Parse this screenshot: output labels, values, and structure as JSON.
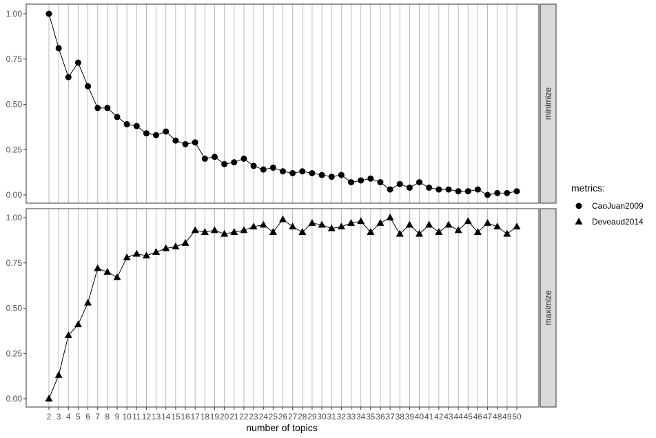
{
  "chart_data": {
    "type": "line",
    "xlabel": "number of topics",
    "x": [
      2,
      3,
      4,
      5,
      6,
      7,
      8,
      9,
      10,
      11,
      12,
      13,
      14,
      15,
      16,
      17,
      18,
      19,
      20,
      21,
      22,
      23,
      24,
      25,
      26,
      27,
      28,
      29,
      30,
      31,
      32,
      33,
      34,
      35,
      36,
      37,
      38,
      39,
      40,
      41,
      42,
      43,
      44,
      45,
      46,
      47,
      48,
      49,
      50
    ],
    "grid": true,
    "legend": {
      "title": "metrics:",
      "position": "right",
      "entries": [
        {
          "label": "CaoJuan2009",
          "shape": "circle"
        },
        {
          "label": "Deveaud2014",
          "shape": "triangle"
        }
      ]
    },
    "panels": [
      {
        "strip_label": "minimize",
        "ylim": [
          0,
          1
        ],
        "yticks": [
          "0.00",
          "0.25",
          "0.50",
          "0.75",
          "1.00"
        ],
        "series": [
          {
            "name": "CaoJuan2009",
            "shape": "circle",
            "values": [
              1.0,
              0.81,
              0.65,
              0.73,
              0.6,
              0.48,
              0.48,
              0.43,
              0.39,
              0.38,
              0.34,
              0.33,
              0.35,
              0.3,
              0.28,
              0.29,
              0.2,
              0.21,
              0.17,
              0.18,
              0.2,
              0.16,
              0.14,
              0.15,
              0.13,
              0.12,
              0.13,
              0.12,
              0.11,
              0.1,
              0.11,
              0.07,
              0.08,
              0.09,
              0.07,
              0.03,
              0.06,
              0.04,
              0.07,
              0.04,
              0.03,
              0.03,
              0.02,
              0.02,
              0.03,
              0.0,
              0.01,
              0.01,
              0.02
            ]
          }
        ]
      },
      {
        "strip_label": "maximize",
        "ylim": [
          0,
          1
        ],
        "yticks": [
          "0.00",
          "0.25",
          "0.50",
          "0.75",
          "1.00"
        ],
        "series": [
          {
            "name": "Deveaud2014",
            "shape": "triangle",
            "values": [
              0.0,
              0.13,
              0.35,
              0.41,
              0.53,
              0.72,
              0.7,
              0.67,
              0.78,
              0.8,
              0.79,
              0.81,
              0.83,
              0.84,
              0.86,
              0.93,
              0.92,
              0.93,
              0.91,
              0.92,
              0.93,
              0.95,
              0.96,
              0.92,
              0.99,
              0.95,
              0.92,
              0.97,
              0.96,
              0.94,
              0.95,
              0.97,
              0.98,
              0.92,
              0.97,
              1.0,
              0.91,
              0.96,
              0.91,
              0.96,
              0.92,
              0.96,
              0.93,
              0.98,
              0.92,
              0.97,
              0.95,
              0.91,
              0.95
            ]
          }
        ]
      }
    ]
  }
}
